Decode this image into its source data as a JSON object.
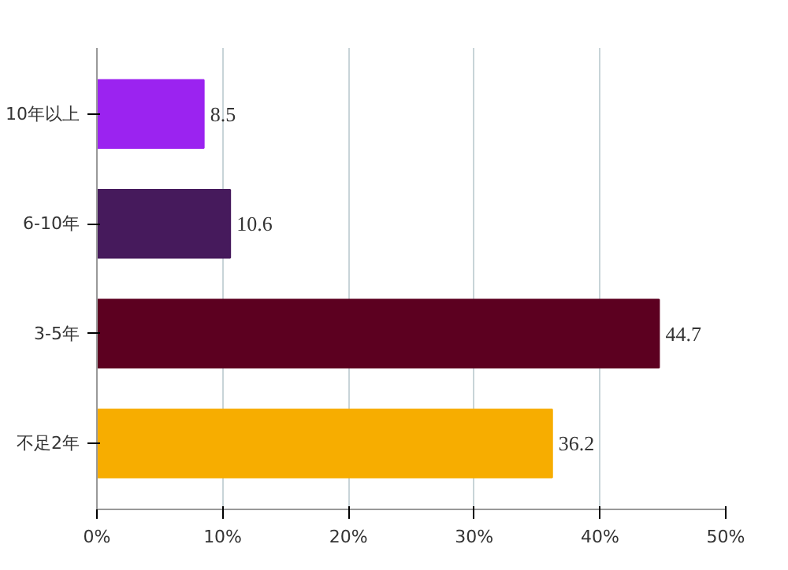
{
  "chart_data": {
    "type": "bar",
    "orientation": "horizontal",
    "categories": [
      "10年以上",
      "6-10年",
      "3-5年",
      "不足2年"
    ],
    "values": [
      8.5,
      10.6,
      44.7,
      36.2
    ],
    "colors": [
      "#9b23f0",
      "#461a5c",
      "#5c0020",
      "#f7ad00"
    ],
    "xlim": [
      0,
      50
    ],
    "xticks": [
      {
        "value": 0,
        "label": "0%"
      },
      {
        "value": 10,
        "label": "10%"
      },
      {
        "value": 20,
        "label": "20%"
      },
      {
        "value": 30,
        "label": "30%"
      },
      {
        "value": 40,
        "label": "40%"
      },
      {
        "value": 50,
        "label": "50%"
      }
    ],
    "grid": "x",
    "data_labels": true
  }
}
